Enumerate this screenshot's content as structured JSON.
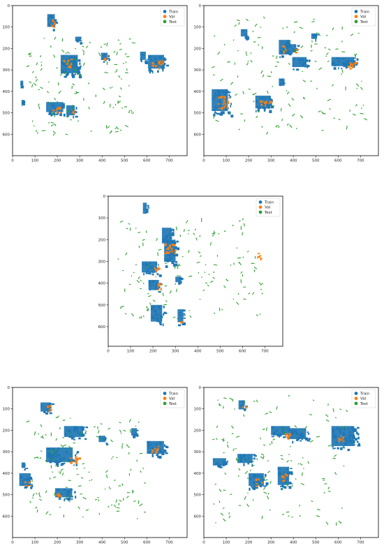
{
  "chart_data": [
    {
      "type": "scatter",
      "panel": "top-left",
      "xlim": [
        0,
        780
      ],
      "ylim": [
        0,
        700
      ],
      "xticks": [
        "0",
        "100",
        "200",
        "300",
        "400",
        "500",
        "600",
        "700"
      ],
      "yticks": [
        "0",
        "100",
        "200",
        "300",
        "400",
        "500",
        "600"
      ],
      "y_inverted": true,
      "grid": false,
      "legend": {
        "position": "top-right",
        "entries": [
          "Train",
          "Val",
          "Test"
        ]
      },
      "series": [
        {
          "name": "Train",
          "color": "#1f77b4",
          "regions": [
            {
              "x": [
                155,
                195
              ],
              "y": [
                40,
                110
              ]
            },
            {
              "x": [
                280,
                310
              ],
              "y": [
                145,
                170
              ]
            },
            {
              "x": [
                215,
                305
              ],
              "y": [
                230,
                330
              ]
            },
            {
              "x": [
                395,
                430
              ],
              "y": [
                220,
                260
              ]
            },
            {
              "x": [
                570,
                600
              ],
              "y": [
                215,
                260
              ]
            },
            {
              "x": [
                605,
                690
              ],
              "y": [
                230,
                305
              ]
            },
            {
              "x": [
                150,
                240
              ],
              "y": [
                450,
                505
              ]
            },
            {
              "x": [
                240,
                285
              ],
              "y": [
                465,
                520
              ]
            },
            {
              "x": [
                250,
                290
              ],
              "y": [
                255,
                300
              ]
            },
            {
              "x": [
                35,
                50
              ],
              "y": [
                350,
                375
              ]
            },
            {
              "x": [
                40,
                55
              ],
              "y": [
                440,
                465
              ]
            }
          ]
        },
        {
          "name": "Val",
          "color": "#ff7f0e",
          "regions": [
            {
              "x": [
                160,
                185
              ],
              "y": [
                60,
                100
              ]
            },
            {
              "x": [
                225,
                260
              ],
              "y": [
                245,
                285
              ]
            },
            {
              "x": [
                405,
                425
              ],
              "y": [
                230,
                250
              ]
            },
            {
              "x": [
                620,
                670
              ],
              "y": [
                255,
                290
              ]
            },
            {
              "x": [
                170,
                215
              ],
              "y": [
                470,
                500
              ]
            },
            {
              "x": [
                250,
                275
              ],
              "y": [
                480,
                505
              ]
            }
          ]
        },
        {
          "name": "Test",
          "color": "#2ca02c",
          "regions": [
            {
              "x": [
                60,
                540
              ],
              "y": [
                130,
                600
              ]
            }
          ]
        }
      ]
    },
    {
      "type": "scatter",
      "panel": "top-right",
      "xlim": [
        0,
        780
      ],
      "ylim": [
        0,
        700
      ],
      "xticks": [
        "0",
        "100",
        "200",
        "300",
        "400",
        "500",
        "600",
        "700"
      ],
      "yticks": [
        "0",
        "100",
        "200",
        "300",
        "400",
        "500",
        "600"
      ],
      "y_inverted": true,
      "grid": false,
      "legend": {
        "position": "top-right",
        "entries": [
          "Train",
          "Val",
          "Test"
        ]
      },
      "series": [
        {
          "name": "Train",
          "color": "#1f77b4",
          "regions": [
            {
              "x": [
                165,
                200
              ],
              "y": [
                110,
                150
              ]
            },
            {
              "x": [
                335,
                385
              ],
              "y": [
                160,
                240
              ]
            },
            {
              "x": [
                370,
                420
              ],
              "y": [
                180,
                225
              ]
            },
            {
              "x": [
                395,
                470
              ],
              "y": [
                240,
                295
              ]
            },
            {
              "x": [
                480,
                510
              ],
              "y": [
                130,
                160
              ]
            },
            {
              "x": [
                570,
                690
              ],
              "y": [
                240,
                290
              ]
            },
            {
              "x": [
                35,
                120
              ],
              "y": [
                390,
                510
              ]
            },
            {
              "x": [
                230,
                310
              ],
              "y": [
                420,
                490
              ]
            },
            {
              "x": [
                335,
                365
              ],
              "y": [
                340,
                380
              ]
            }
          ]
        },
        {
          "name": "Val",
          "color": "#ff7f0e",
          "regions": [
            {
              "x": [
                345,
                365
              ],
              "y": [
                185,
                230
              ]
            },
            {
              "x": [
                400,
                420
              ],
              "y": [
                200,
                220
              ]
            },
            {
              "x": [
                60,
                110
              ],
              "y": [
                420,
                480
              ]
            },
            {
              "x": [
                250,
                300
              ],
              "y": [
                440,
                470
              ]
            },
            {
              "x": [
                640,
                680
              ],
              "y": [
                260,
                290
              ]
            }
          ]
        },
        {
          "name": "Test",
          "color": "#2ca02c",
          "regions": [
            {
              "x": [
                40,
                720
              ],
              "y": [
                45,
                590
              ]
            }
          ]
        }
      ]
    },
    {
      "type": "scatter",
      "panel": "middle",
      "xlim": [
        0,
        780
      ],
      "ylim": [
        0,
        690
      ],
      "xticks": [
        "0",
        "100",
        "200",
        "300",
        "400",
        "500",
        "600",
        "700"
      ],
      "yticks": [
        "0",
        "100",
        "200",
        "300",
        "400",
        "500",
        "600"
      ],
      "y_inverted": true,
      "grid": false,
      "legend": {
        "position": "top-right",
        "entries": [
          "Train",
          "Val",
          "Test"
        ]
      },
      "series": [
        {
          "name": "Train",
          "color": "#1f77b4",
          "regions": [
            {
              "x": [
                155,
                175
              ],
              "y": [
                30,
                90
              ]
            },
            {
              "x": [
                250,
                310
              ],
              "y": [
                200,
                320
              ]
            },
            {
              "x": [
                150,
                230
              ],
              "y": [
                300,
                360
              ]
            },
            {
              "x": [
                180,
                235
              ],
              "y": [
                385,
                440
              ]
            },
            {
              "x": [
                190,
                250
              ],
              "y": [
                500,
                590
              ]
            },
            {
              "x": [
                310,
                340
              ],
              "y": [
                520,
                590
              ]
            },
            {
              "x": [
                240,
                290
              ],
              "y": [
                145,
                230
              ]
            },
            {
              "x": [
                300,
                330
              ],
              "y": [
                370,
                400
              ]
            }
          ]
        },
        {
          "name": "Val",
          "color": "#ff7f0e",
          "regions": [
            {
              "x": [
                250,
                300
              ],
              "y": [
                210,
                260
              ]
            },
            {
              "x": [
                200,
                225
              ],
              "y": [
                320,
                360
              ]
            },
            {
              "x": [
                215,
                240
              ],
              "y": [
                395,
                430
              ]
            },
            {
              "x": [
                320,
                335
              ],
              "y": [
                540,
                580
              ]
            },
            {
              "x": [
                665,
                685
              ],
              "y": [
                260,
                295
              ]
            }
          ]
        },
        {
          "name": "Test",
          "color": "#2ca02c",
          "regions": [
            {
              "x": [
                40,
                700
              ],
              "y": [
                100,
                560
              ]
            }
          ]
        }
      ]
    },
    {
      "type": "scatter",
      "panel": "bottom-left",
      "xlim": [
        0,
        780
      ],
      "ylim": [
        0,
        700
      ],
      "xticks": [
        "0",
        "100",
        "200",
        "300",
        "400",
        "500",
        "600",
        "700"
      ],
      "yticks": [
        "0",
        "100",
        "200",
        "300",
        "400",
        "500",
        "600"
      ],
      "y_inverted": true,
      "grid": false,
      "legend": {
        "position": "top-right",
        "entries": [
          "Train",
          "Val",
          "Test"
        ]
      },
      "series": [
        {
          "name": "Train",
          "color": "#1f77b4",
          "regions": [
            {
              "x": [
                125,
                175
              ],
              "y": [
                70,
                120
              ]
            },
            {
              "x": [
                230,
                330
              ],
              "y": [
                180,
                240
              ]
            },
            {
              "x": [
                150,
                290
              ],
              "y": [
                280,
                360
              ]
            },
            {
              "x": [
                30,
                90
              ],
              "y": [
                400,
                470
              ]
            },
            {
              "x": [
                40,
                60
              ],
              "y": [
                350,
                380
              ]
            },
            {
              "x": [
                190,
                280
              ],
              "y": [
                470,
                520
              ]
            },
            {
              "x": [
                385,
                420
              ],
              "y": [
                225,
                260
              ]
            },
            {
              "x": [
                530,
                560
              ],
              "y": [
                190,
                230
              ]
            },
            {
              "x": [
                600,
                690
              ],
              "y": [
                250,
                320
              ]
            }
          ]
        },
        {
          "name": "Val",
          "color": "#ff7f0e",
          "regions": [
            {
              "x": [
                145,
                170
              ],
              "y": [
                80,
                110
              ]
            },
            {
              "x": [
                240,
                300
              ],
              "y": [
                320,
                350
              ]
            },
            {
              "x": [
                50,
                80
              ],
              "y": [
                430,
                460
              ]
            },
            {
              "x": [
                190,
                220
              ],
              "y": [
                480,
                510
              ]
            },
            {
              "x": [
                620,
                650
              ],
              "y": [
                260,
                300
              ]
            }
          ]
        },
        {
          "name": "Test",
          "color": "#2ca02c",
          "regions": [
            {
              "x": [
                60,
                590
              ],
              "y": [
                130,
                610
              ]
            }
          ]
        }
      ]
    },
    {
      "type": "scatter",
      "panel": "bottom-right",
      "xlim": [
        0,
        780
      ],
      "ylim": [
        0,
        700
      ],
      "xticks": [
        "0",
        "100",
        "200",
        "300",
        "400",
        "500",
        "600",
        "700"
      ],
      "yticks": [
        "0",
        "100",
        "200",
        "300",
        "400",
        "500",
        "600"
      ],
      "y_inverted": true,
      "grid": false,
      "legend": {
        "position": "top-right",
        "entries": [
          "Train",
          "Val",
          "Test"
        ]
      },
      "series": [
        {
          "name": "Train",
          "color": "#1f77b4",
          "regions": [
            {
              "x": [
                155,
                185
              ],
              "y": [
                60,
                110
              ]
            },
            {
              "x": [
                300,
                400
              ],
              "y": [
                180,
                230
              ]
            },
            {
              "x": [
                380,
                470
              ],
              "y": [
                190,
                250
              ]
            },
            {
              "x": [
                570,
                690
              ],
              "y": [
                180,
                290
              ]
            },
            {
              "x": [
                150,
                230
              ],
              "y": [
                310,
                360
              ]
            },
            {
              "x": [
                330,
                390
              ],
              "y": [
                370,
                470
              ]
            },
            {
              "x": [
                200,
                280
              ],
              "y": [
                400,
                470
              ]
            },
            {
              "x": [
                40,
                110
              ],
              "y": [
                330,
                370
              ]
            }
          ]
        },
        {
          "name": "Val",
          "color": "#ff7f0e",
          "regions": [
            {
              "x": [
                360,
                390
              ],
              "y": [
                200,
                240
              ]
            },
            {
              "x": [
                340,
                370
              ],
              "y": [
                400,
                440
              ]
            },
            {
              "x": [
                590,
                620
              ],
              "y": [
                220,
                250
              ]
            },
            {
              "x": [
                230,
                260
              ],
              "y": [
                420,
                460
              ]
            },
            {
              "x": [
                170,
                190
              ],
              "y": [
                80,
                100
              ]
            }
          ]
        },
        {
          "name": "Test",
          "color": "#2ca02c",
          "regions": [
            {
              "x": [
                40,
                640
              ],
              "y": [
                30,
                630
              ]
            }
          ]
        }
      ]
    }
  ]
}
